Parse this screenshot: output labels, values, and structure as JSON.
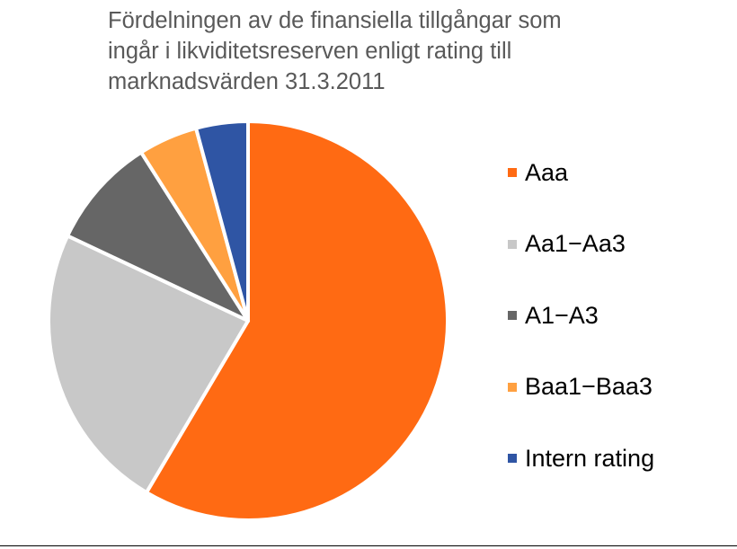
{
  "chart_data": {
    "type": "pie",
    "title": "Fördelningen av de finansiella tillgångar som\ningår i likviditetsreserven enligt rating till\nmarknadsvärden 31.3.2011",
    "labels": [
      "Aaa",
      "Aa1−Aa3",
      "A1−A3",
      "Baa1−Baa3",
      "Intern rating"
    ],
    "values": [
      58.5,
      23.5,
      9.0,
      4.8,
      4.2
    ],
    "colors": [
      "#FF6A13",
      "#C8C8C8",
      "#666666",
      "#FFA040",
      "#2F55A4"
    ],
    "start": "12 o'clock",
    "direction": "clockwise",
    "legend_position": "right"
  }
}
